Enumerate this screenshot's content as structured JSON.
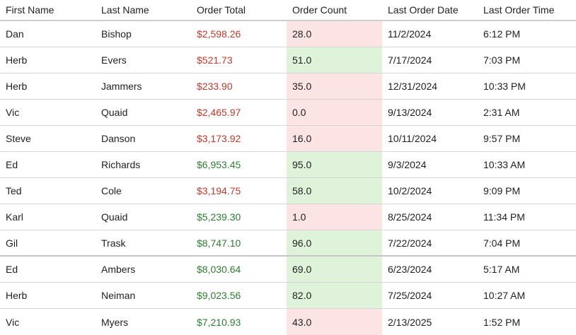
{
  "columns": {
    "first_name": "First Name",
    "last_name": "Last Name",
    "order_total": "Order Total",
    "order_count": "Order Count",
    "last_order_date": "Last Order Date",
    "last_order_time": "Last Order Time"
  },
  "colors": {
    "negative_total": "#c0392b",
    "positive_total": "#2e7d32",
    "low_count_bg": "#fde4e4",
    "high_count_bg": "#dff3da"
  },
  "rows": [
    {
      "first": "Dan",
      "last": "Bishop",
      "total": "$2,598.26",
      "total_status": "negative",
      "count": "28.0",
      "count_status": "low",
      "date": "11/2/2024",
      "time": "6:12 PM"
    },
    {
      "first": "Herb",
      "last": "Evers",
      "total": "$521.73",
      "total_status": "negative",
      "count": "51.0",
      "count_status": "high",
      "date": "7/17/2024",
      "time": "7:03 PM"
    },
    {
      "first": "Herb",
      "last": "Jammers",
      "total": "$233.90",
      "total_status": "negative",
      "count": "35.0",
      "count_status": "low",
      "date": "12/31/2024",
      "time": "10:33 PM"
    },
    {
      "first": "Vic",
      "last": "Quaid",
      "total": "$2,465.97",
      "total_status": "negative",
      "count": "0.0",
      "count_status": "low",
      "date": "9/13/2024",
      "time": "2:31 AM"
    },
    {
      "first": "Steve",
      "last": "Danson",
      "total": "$3,173.92",
      "total_status": "negative",
      "count": "16.0",
      "count_status": "low",
      "date": "10/11/2024",
      "time": "9:57 PM"
    },
    {
      "first": "Ed",
      "last": "Richards",
      "total": "$6,953.45",
      "total_status": "positive",
      "count": "95.0",
      "count_status": "high",
      "date": "9/3/2024",
      "time": "10:33 AM"
    },
    {
      "first": "Ted",
      "last": "Cole",
      "total": "$3,194.75",
      "total_status": "negative",
      "count": "58.0",
      "count_status": "high",
      "date": "10/2/2024",
      "time": "9:09 PM"
    },
    {
      "first": "Karl",
      "last": "Quaid",
      "total": "$5,239.30",
      "total_status": "positive",
      "count": "1.0",
      "count_status": "low",
      "date": "8/25/2024",
      "time": "11:34 PM"
    },
    {
      "first": "Gil",
      "last": "Trask",
      "total": "$8,747.10",
      "total_status": "positive",
      "count": "96.0",
      "count_status": "high",
      "date": "7/22/2024",
      "time": "7:04 PM"
    },
    {
      "first": "Ed",
      "last": "Ambers",
      "total": "$8,030.64",
      "total_status": "positive",
      "count": "69.0",
      "count_status": "high",
      "date": "6/23/2024",
      "time": "5:17 AM"
    },
    {
      "first": "Herb",
      "last": "Neiman",
      "total": "$9,023.56",
      "total_status": "positive",
      "count": "82.0",
      "count_status": "high",
      "date": "7/25/2024",
      "time": "10:27 AM"
    },
    {
      "first": "Vic",
      "last": "Myers",
      "total": "$7,210.93",
      "total_status": "positive",
      "count": "43.0",
      "count_status": "low",
      "date": "2/13/2025",
      "time": "1:52 PM"
    }
  ]
}
